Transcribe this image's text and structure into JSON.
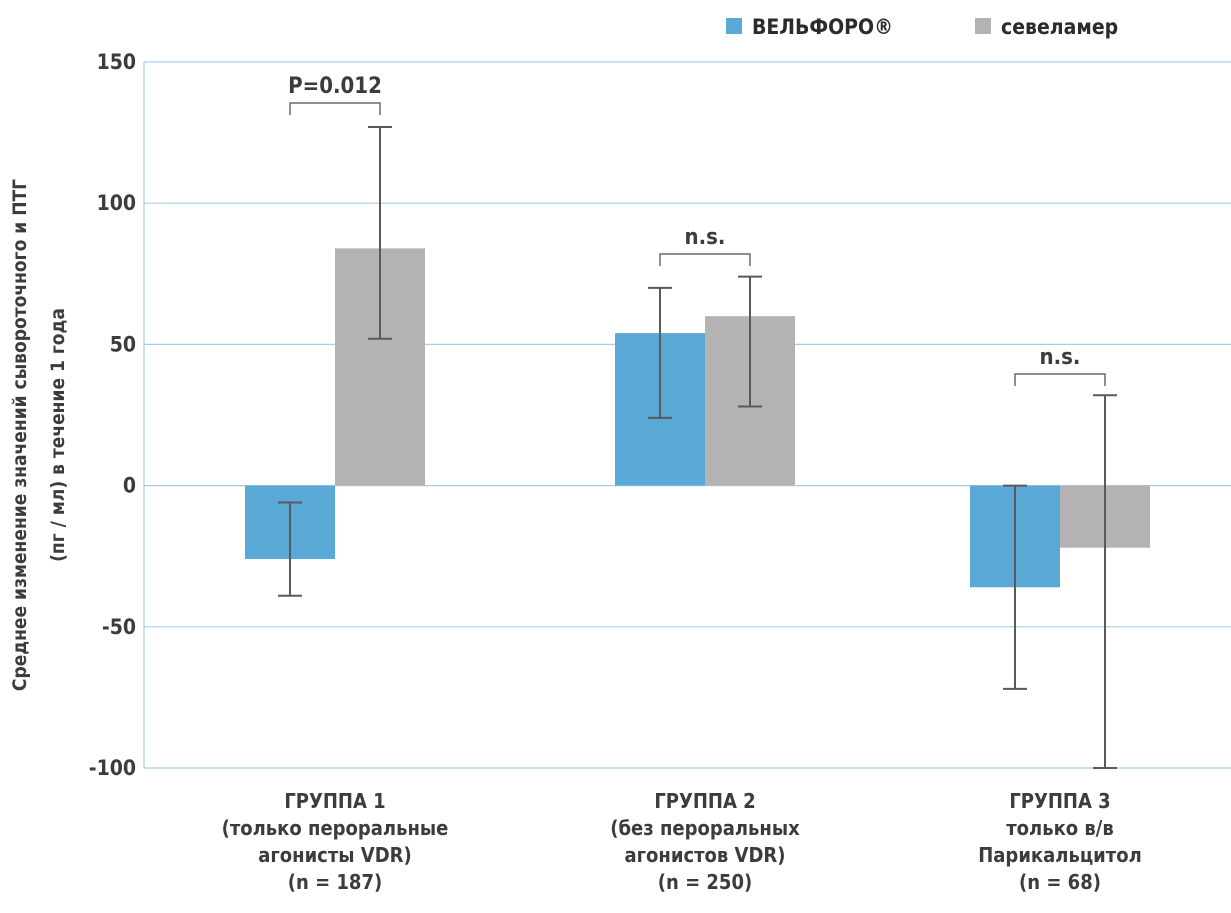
{
  "chart_data": {
    "type": "bar",
    "ylabel_lines": [
      "Среднее изменение значений сывороточного и ПТГ",
      "(пг / мл) в течение 1 года"
    ],
    "ylim": [
      -100,
      150
    ],
    "yticks": [
      150,
      100,
      50,
      0,
      -50,
      -100
    ],
    "grid": true,
    "legend_position": "top-right",
    "categories": [
      {
        "lines": [
          "ГРУППА 1",
          "(только пероральные",
          "агонисты VDR)",
          "(n = 187)"
        ]
      },
      {
        "lines": [
          "ГРУППА 2",
          "(без пероральных",
          "агонистов VDR)",
          "(n = 250)"
        ]
      },
      {
        "lines": [
          "ГРУППА 3",
          "только в/в",
          "Парикальцитол",
          "(n = 68)"
        ]
      }
    ],
    "series": [
      {
        "name": "ВЕЛЬФОРО®",
        "color": "#59a8d5",
        "values": [
          -26,
          54,
          -36
        ],
        "error_low": [
          -39,
          24,
          -72
        ],
        "error_high": [
          -6,
          70,
          0
        ]
      },
      {
        "name": "севеламер",
        "color": "#b3b3b3",
        "values": [
          84,
          60,
          -22
        ],
        "error_low": [
          52,
          28,
          -100
        ],
        "error_high": [
          127,
          74,
          32
        ]
      }
    ],
    "annotations": [
      {
        "category": 0,
        "label": "P=0.012"
      },
      {
        "category": 1,
        "label": "n.s."
      },
      {
        "category": 2,
        "label": "n.s."
      }
    ]
  }
}
